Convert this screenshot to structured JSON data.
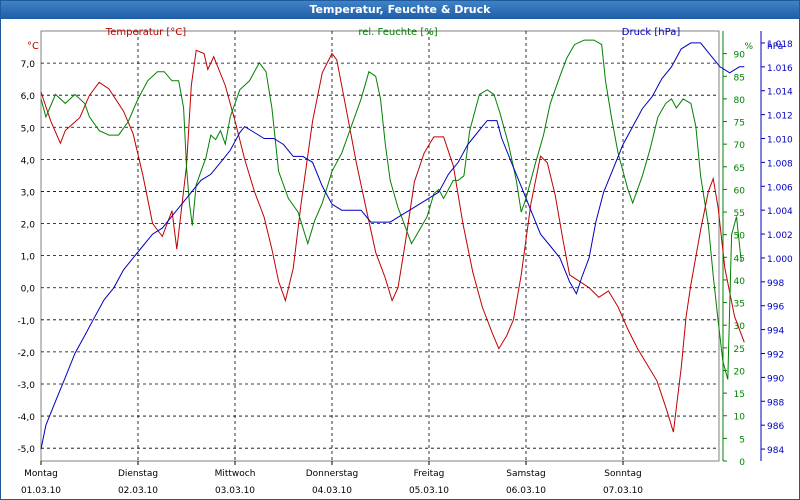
{
  "window": {
    "title": "Temperatur, Feuchte & Druck"
  },
  "colors": {
    "temp": "#c00000",
    "hum": "#008000",
    "press": "#0000c0",
    "grid": "#000000"
  },
  "chart_data": {
    "type": "line",
    "title": "Temperatur, Feuchte & Druck",
    "grid": true,
    "x_range": [
      0,
      7
    ],
    "x_unit": "days from Montag 01.03.10 00:00",
    "x_ticks": [
      {
        "day": "Montag",
        "date": "01.03.10"
      },
      {
        "day": "Dienstag",
        "date": "02.03.10"
      },
      {
        "day": "Mittwoch",
        "date": "03.03.10"
      },
      {
        "day": "Donnerstag",
        "date": "04.03.10"
      },
      {
        "day": "Freitag",
        "date": "05.03.10"
      },
      {
        "day": "Samstag",
        "date": "06.03.10"
      },
      {
        "day": "Sonntag",
        "date": "07.03.10"
      }
    ],
    "axes": {
      "temp": {
        "label": "Temperatur [°C]",
        "unit": "°C",
        "ylim": [
          -5.4,
          8.0
        ],
        "ticks": [
          "7,0",
          "6,0",
          "5,0",
          "4,0",
          "3,0",
          "2,0",
          "1,0",
          "0,0",
          "-1,0",
          "-2,0",
          "-3,0",
          "-4,0",
          "-5,0"
        ],
        "tick_values": [
          7,
          6,
          5,
          4,
          3,
          2,
          1,
          0,
          -1,
          -2,
          -3,
          -4,
          -5
        ]
      },
      "hum": {
        "label": "rel. Feuchte [%]",
        "unit": "%",
        "ylim": [
          0,
          95
        ],
        "ticks": [
          "90",
          "85",
          "80",
          "75",
          "70",
          "65",
          "60",
          "55",
          "50",
          "45",
          "40",
          "35",
          "30",
          "25",
          "20",
          "15",
          "10",
          "5",
          "0"
        ],
        "tick_values": [
          90,
          85,
          80,
          75,
          70,
          65,
          60,
          55,
          50,
          45,
          40,
          35,
          30,
          25,
          20,
          15,
          10,
          5,
          0
        ]
      },
      "press": {
        "label": "Druck [hPa]",
        "unit": "hPa",
        "ylim": [
          983,
          1019
        ],
        "ticks": [
          "1.018",
          "1.016",
          "1.014",
          "1.012",
          "1.010",
          "1.008",
          "1.006",
          "1.004",
          "1.002",
          "1.000",
          "998",
          "996",
          "994",
          "992",
          "990",
          "988",
          "986",
          "984"
        ],
        "tick_values": [
          1018,
          1016,
          1014,
          1012,
          1010,
          1008,
          1006,
          1004,
          1002,
          1000,
          998,
          996,
          994,
          992,
          990,
          988,
          986,
          984
        ]
      }
    },
    "series": [
      {
        "name": "Temperatur [°C]",
        "axis": "temp",
        "points": [
          [
            0,
            6.1
          ],
          [
            0.1,
            5.2
          ],
          [
            0.2,
            4.5
          ],
          [
            0.25,
            4.9
          ],
          [
            0.4,
            5.3
          ],
          [
            0.5,
            6.0
          ],
          [
            0.6,
            6.4
          ],
          [
            0.7,
            6.2
          ],
          [
            0.85,
            5.5
          ],
          [
            0.95,
            4.8
          ],
          [
            1.05,
            3.5
          ],
          [
            1.15,
            2.0
          ],
          [
            1.25,
            1.6
          ],
          [
            1.35,
            2.4
          ],
          [
            1.4,
            1.2
          ],
          [
            1.5,
            3.8
          ],
          [
            1.55,
            6.3
          ],
          [
            1.6,
            7.4
          ],
          [
            1.68,
            7.3
          ],
          [
            1.72,
            6.8
          ],
          [
            1.78,
            7.2
          ],
          [
            1.9,
            6.3
          ],
          [
            2.0,
            5.2
          ],
          [
            2.1,
            4.0
          ],
          [
            2.2,
            3.0
          ],
          [
            2.3,
            2.2
          ],
          [
            2.38,
            1.2
          ],
          [
            2.45,
            0.2
          ],
          [
            2.52,
            -0.4
          ],
          [
            2.6,
            0.6
          ],
          [
            2.68,
            2.6
          ],
          [
            2.8,
            5.2
          ],
          [
            2.9,
            6.7
          ],
          [
            3.0,
            7.3
          ],
          [
            3.05,
            7.1
          ],
          [
            3.15,
            5.5
          ],
          [
            3.25,
            3.9
          ],
          [
            3.35,
            2.5
          ],
          [
            3.45,
            1.1
          ],
          [
            3.55,
            0.3
          ],
          [
            3.62,
            -0.4
          ],
          [
            3.68,
            0.0
          ],
          [
            3.75,
            1.3
          ],
          [
            3.85,
            3.3
          ],
          [
            3.95,
            4.2
          ],
          [
            4.05,
            4.7
          ],
          [
            4.15,
            4.7
          ],
          [
            4.25,
            3.8
          ],
          [
            4.35,
            2.0
          ],
          [
            4.45,
            0.5
          ],
          [
            4.55,
            -0.6
          ],
          [
            4.65,
            -1.4
          ],
          [
            4.72,
            -1.9
          ],
          [
            4.8,
            -1.5
          ],
          [
            4.87,
            -1.0
          ],
          [
            4.95,
            0.4
          ],
          [
            5.05,
            2.6
          ],
          [
            5.15,
            4.1
          ],
          [
            5.22,
            3.9
          ],
          [
            5.3,
            2.9
          ],
          [
            5.38,
            1.5
          ],
          [
            5.45,
            0.4
          ],
          [
            5.55,
            0.2
          ],
          [
            5.65,
            0.0
          ],
          [
            5.75,
            -0.3
          ],
          [
            5.85,
            -0.1
          ],
          [
            5.95,
            -0.6
          ],
          [
            6.05,
            -1.3
          ],
          [
            6.15,
            -1.9
          ],
          [
            6.25,
            -2.4
          ],
          [
            6.35,
            -2.9
          ],
          [
            6.45,
            -3.8
          ],
          [
            6.52,
            -4.5
          ],
          [
            6.6,
            -2.5
          ],
          [
            6.65,
            -0.9
          ],
          [
            6.7,
            0.1
          ],
          [
            6.8,
            1.8
          ],
          [
            6.88,
            3.0
          ],
          [
            6.93,
            3.4
          ],
          [
            6.98,
            2.5
          ],
          [
            7.05,
            0.6
          ],
          [
            7.15,
            -0.9
          ],
          [
            7.25,
            -1.7
          ]
        ]
      },
      {
        "name": "rel. Feuchte [%]",
        "axis": "hum",
        "points": [
          [
            0,
            80
          ],
          [
            0.05,
            76
          ],
          [
            0.15,
            81
          ],
          [
            0.25,
            79
          ],
          [
            0.35,
            81
          ],
          [
            0.45,
            79
          ],
          [
            0.5,
            76
          ],
          [
            0.6,
            73
          ],
          [
            0.7,
            72
          ],
          [
            0.8,
            72
          ],
          [
            0.9,
            75
          ],
          [
            1.0,
            80
          ],
          [
            1.1,
            84
          ],
          [
            1.2,
            86
          ],
          [
            1.27,
            86
          ],
          [
            1.35,
            84
          ],
          [
            1.42,
            84
          ],
          [
            1.47,
            78
          ],
          [
            1.5,
            65
          ],
          [
            1.53,
            57
          ],
          [
            1.56,
            52
          ],
          [
            1.6,
            61
          ],
          [
            1.65,
            64
          ],
          [
            1.7,
            67
          ],
          [
            1.75,
            72
          ],
          [
            1.8,
            71
          ],
          [
            1.85,
            73
          ],
          [
            1.9,
            70
          ],
          [
            1.95,
            76
          ],
          [
            2.05,
            82
          ],
          [
            2.15,
            84
          ],
          [
            2.25,
            88
          ],
          [
            2.32,
            86
          ],
          [
            2.38,
            78
          ],
          [
            2.45,
            64
          ],
          [
            2.55,
            58
          ],
          [
            2.65,
            55
          ],
          [
            2.75,
            48
          ],
          [
            2.82,
            53
          ],
          [
            2.9,
            57
          ],
          [
            3.0,
            64
          ],
          [
            3.1,
            68
          ],
          [
            3.2,
            74
          ],
          [
            3.3,
            80
          ],
          [
            3.38,
            86
          ],
          [
            3.45,
            85
          ],
          [
            3.5,
            80
          ],
          [
            3.55,
            70
          ],
          [
            3.6,
            62
          ],
          [
            3.68,
            56
          ],
          [
            3.75,
            52
          ],
          [
            3.82,
            48
          ],
          [
            3.9,
            51
          ],
          [
            3.98,
            54
          ],
          [
            4.05,
            59
          ],
          [
            4.1,
            60
          ],
          [
            4.15,
            58
          ],
          [
            4.25,
            62
          ],
          [
            4.3,
            62
          ],
          [
            4.36,
            63
          ],
          [
            4.42,
            73
          ],
          [
            4.52,
            81
          ],
          [
            4.6,
            82
          ],
          [
            4.67,
            81
          ],
          [
            4.73,
            77
          ],
          [
            4.82,
            70
          ],
          [
            4.9,
            62
          ],
          [
            4.95,
            55
          ],
          [
            5.0,
            58
          ],
          [
            5.1,
            66
          ],
          [
            5.18,
            72
          ],
          [
            5.25,
            79
          ],
          [
            5.35,
            85
          ],
          [
            5.42,
            89
          ],
          [
            5.5,
            92
          ],
          [
            5.6,
            93
          ],
          [
            5.7,
            93
          ],
          [
            5.78,
            92
          ],
          [
            5.82,
            84
          ],
          [
            5.88,
            76
          ],
          [
            5.95,
            68
          ],
          [
            6.05,
            60
          ],
          [
            6.1,
            57
          ],
          [
            6.2,
            63
          ],
          [
            6.28,
            69
          ],
          [
            6.36,
            76
          ],
          [
            6.44,
            79
          ],
          [
            6.5,
            80
          ],
          [
            6.55,
            78
          ],
          [
            6.62,
            80
          ],
          [
            6.7,
            79
          ],
          [
            6.75,
            74
          ],
          [
            6.8,
            63
          ],
          [
            6.88,
            52
          ],
          [
            6.93,
            41
          ],
          [
            6.98,
            31
          ],
          [
            7.03,
            22
          ],
          [
            7.08,
            18
          ],
          [
            7.12,
            50
          ],
          [
            7.17,
            54
          ],
          [
            7.22,
            44
          ]
        ]
      },
      {
        "name": "Druck [hPa]",
        "axis": "press",
        "points": [
          [
            0,
            984
          ],
          [
            0.05,
            986
          ],
          [
            0.15,
            988
          ],
          [
            0.25,
            990
          ],
          [
            0.35,
            992
          ],
          [
            0.45,
            993.5
          ],
          [
            0.55,
            995
          ],
          [
            0.65,
            996.5
          ],
          [
            0.75,
            997.5
          ],
          [
            0.85,
            999
          ],
          [
            0.95,
            1000
          ],
          [
            1.05,
            1001
          ],
          [
            1.15,
            1002
          ],
          [
            1.25,
            1002.5
          ],
          [
            1.35,
            1003.5
          ],
          [
            1.45,
            1004.5
          ],
          [
            1.55,
            1005.5
          ],
          [
            1.65,
            1006.5
          ],
          [
            1.75,
            1007
          ],
          [
            1.85,
            1008
          ],
          [
            1.95,
            1009
          ],
          [
            2.05,
            1010.5
          ],
          [
            2.1,
            1011
          ],
          [
            2.2,
            1010.5
          ],
          [
            2.3,
            1010
          ],
          [
            2.4,
            1010
          ],
          [
            2.5,
            1009.5
          ],
          [
            2.6,
            1008.5
          ],
          [
            2.7,
            1008.5
          ],
          [
            2.8,
            1008
          ],
          [
            2.9,
            1006
          ],
          [
            3.0,
            1004.5
          ],
          [
            3.1,
            1004
          ],
          [
            3.2,
            1004
          ],
          [
            3.3,
            1004
          ],
          [
            3.4,
            1003
          ],
          [
            3.5,
            1003
          ],
          [
            3.6,
            1003
          ],
          [
            3.7,
            1003.5
          ],
          [
            3.8,
            1004
          ],
          [
            3.9,
            1004.5
          ],
          [
            4.0,
            1005
          ],
          [
            4.1,
            1005.5
          ],
          [
            4.2,
            1007
          ],
          [
            4.3,
            1008
          ],
          [
            4.4,
            1009.5
          ],
          [
            4.5,
            1010.5
          ],
          [
            4.6,
            1011.5
          ],
          [
            4.7,
            1011.5
          ],
          [
            4.75,
            1010
          ],
          [
            4.85,
            1008
          ],
          [
            4.95,
            1006
          ],
          [
            5.05,
            1004
          ],
          [
            5.15,
            1002
          ],
          [
            5.25,
            1001
          ],
          [
            5.35,
            1000
          ],
          [
            5.45,
            998
          ],
          [
            5.52,
            997
          ],
          [
            5.58,
            998.5
          ],
          [
            5.65,
            1000
          ],
          [
            5.72,
            1003
          ],
          [
            5.8,
            1005.5
          ],
          [
            5.9,
            1007.5
          ],
          [
            6.0,
            1009.5
          ],
          [
            6.1,
            1011
          ],
          [
            6.2,
            1012.5
          ],
          [
            6.3,
            1013.5
          ],
          [
            6.4,
            1015
          ],
          [
            6.5,
            1016
          ],
          [
            6.6,
            1017.5
          ],
          [
            6.7,
            1018
          ],
          [
            6.8,
            1018
          ],
          [
            6.9,
            1017
          ],
          [
            7.0,
            1016
          ],
          [
            7.1,
            1015.5
          ],
          [
            7.2,
            1016
          ],
          [
            7.25,
            1016
          ]
        ]
      }
    ]
  }
}
